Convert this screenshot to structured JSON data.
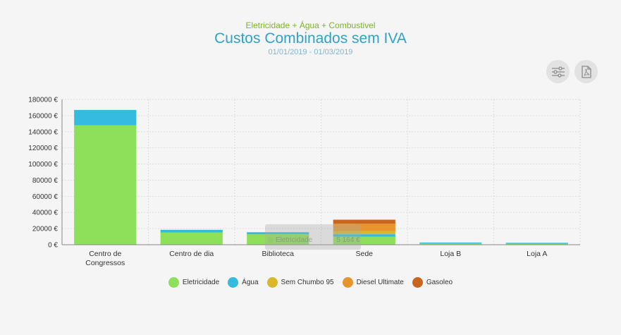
{
  "header": {
    "subtitle": "Eletricidade + Água + Combustivel",
    "title": "Custos Combinados sem IVA",
    "daterange": "01/01/2019 - 01/03/2019"
  },
  "toolbar": {
    "filter_icon": "sliders-icon",
    "pdf_icon": "pdf-icon"
  },
  "tooltip": {
    "series": "Eletricidade",
    "value": "5 164 €"
  },
  "chart_data": {
    "type": "bar",
    "stacked": true,
    "title": "Custos Combinados sem IVA",
    "subtitle": "Eletricidade + Água + Combustivel",
    "categories": [
      "Centro de Congressos",
      "Centro de dia",
      "Biblioteca",
      "Sede",
      "Loja B",
      "Loja A"
    ],
    "category_lines": [
      [
        "Centro de",
        "Congressos"
      ],
      [
        "Centro de dia"
      ],
      [
        "Biblioteca"
      ],
      [
        "Sede"
      ],
      [
        "Loja B"
      ],
      [
        "Loja A"
      ]
    ],
    "ylim": [
      0,
      180000
    ],
    "yticks": [
      0,
      20000,
      40000,
      60000,
      80000,
      100000,
      120000,
      140000,
      160000,
      180000
    ],
    "ytick_labels": [
      "0 €",
      "20000 €",
      "40000 €",
      "60000 €",
      "80000 €",
      "100000 €",
      "120000 €",
      "140000 €",
      "160000 €",
      "180000 €"
    ],
    "grid": true,
    "legend_position": "bottom-center",
    "series": [
      {
        "name": "Eletricidade",
        "color": "#8ee05a",
        "values": [
          148000,
          15000,
          13000,
          10000,
          1500,
          1200
        ]
      },
      {
        "name": "Água",
        "color": "#35bbe0",
        "values": [
          19000,
          3500,
          2500,
          3000,
          1200,
          1200
        ]
      },
      {
        "name": "Sem Chumbo 95",
        "color": "#d9b82a",
        "values": [
          0,
          0,
          0,
          4000,
          0,
          0
        ]
      },
      {
        "name": "Diesel Ultimate",
        "color": "#e8942d",
        "values": [
          0,
          0,
          0,
          9000,
          0,
          0
        ]
      },
      {
        "name": "Gasoleo",
        "color": "#c8651f",
        "values": [
          0,
          0,
          0,
          5000,
          0,
          0
        ]
      }
    ]
  }
}
